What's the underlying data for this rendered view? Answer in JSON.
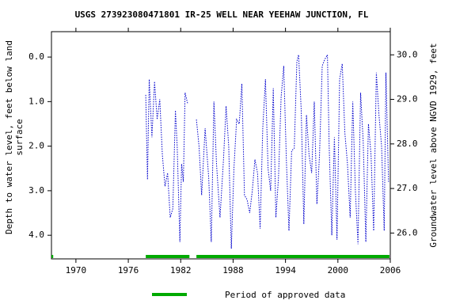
{
  "chart_data": {
    "type": "line",
    "title": "USGS 273923080471801 IR-25 WELL NEAR YEEHAW JUNCTION, FL",
    "ylabel": [
      "Depth to water level, feet below land",
      "surface"
    ],
    "y2label": "Groundwater level above NGVD 1929, feet",
    "xlim": [
      1967.2,
      2006
    ],
    "xticks": [
      1970,
      1976,
      1982,
      1988,
      1994,
      2000,
      2006
    ],
    "ylim": [
      -0.57,
      4.53
    ],
    "yticks": [
      {
        "value": 0,
        "label": "0.0"
      },
      {
        "value": 1,
        "label": "1.0"
      },
      {
        "value": 2,
        "label": "2.0"
      },
      {
        "value": 3,
        "label": "3.0"
      },
      {
        "value": 4,
        "label": "4.0"
      }
    ],
    "y2lim": [
      30.52,
      25.42
    ],
    "y2ticks": [
      {
        "value": 30,
        "label": "30.0"
      },
      {
        "value": 29,
        "label": "29.0"
      },
      {
        "value": 28,
        "label": "28.0"
      },
      {
        "value": 27,
        "label": "27.0"
      },
      {
        "value": 26,
        "label": "26.0"
      }
    ],
    "series": [
      {
        "color": "#0000cc",
        "x": [
          1967.3,
          null,
          1978.0,
          1978.2,
          1978.4,
          1978.7,
          1979.0,
          1979.3,
          1979.6,
          1979.9,
          1980.2,
          1980.5,
          1980.8,
          1981.1,
          1981.4,
          1981.6,
          1981.9,
          1982.1,
          1982.3,
          1982.5,
          1982.8,
          null,
          1983.8,
          1984.1,
          1984.4,
          1984.8,
          1985.2,
          1985.5,
          1985.8,
          1986.1,
          1986.5,
          1986.9,
          1987.2,
          1987.5,
          1987.8,
          1988.1,
          1988.4,
          1988.7,
          1989.0,
          1989.3,
          1989.6,
          1989.9,
          1990.2,
          1990.5,
          1990.8,
          1991.1,
          1991.4,
          1991.7,
          1992.0,
          1992.3,
          1992.6,
          1992.9,
          1993.2,
          1993.5,
          1993.8,
          1994.1,
          1994.4,
          1994.7,
          1995.0,
          1995.3,
          1995.5,
          1995.8,
          1996.1,
          1996.4,
          1996.7,
          1997.0,
          1997.3,
          1997.6,
          1997.9,
          1998.2,
          1998.5,
          1998.8,
          1999.0,
          1999.3,
          1999.6,
          1999.9,
          2000.2,
          2000.5,
          2000.8,
          2001.1,
          2001.4,
          2001.7,
          2002.0,
          2002.3,
          2002.6,
          2002.9,
          2003.2,
          2003.5,
          2003.8,
          2004.1,
          2004.4,
          2004.7,
          2005.0,
          2005.3,
          2005.5,
          2005.8
        ],
        "values": [
          2.65,
          null,
          0.85,
          2.75,
          0.5,
          1.8,
          0.55,
          1.4,
          0.95,
          2.2,
          2.9,
          2.6,
          3.6,
          3.4,
          1.2,
          2.0,
          4.15,
          2.4,
          2.8,
          0.8,
          1.05,
          null,
          1.4,
          2.0,
          3.1,
          1.6,
          2.7,
          4.15,
          1.0,
          2.4,
          3.6,
          2.3,
          1.1,
          2.0,
          4.3,
          2.5,
          1.4,
          1.5,
          0.6,
          3.1,
          3.2,
          3.5,
          3.0,
          2.3,
          2.6,
          3.85,
          1.6,
          0.5,
          2.5,
          3.0,
          0.7,
          3.6,
          2.7,
          0.9,
          0.2,
          2.3,
          3.9,
          2.1,
          2.05,
          0.1,
          -0.05,
          1.2,
          3.75,
          1.3,
          2.2,
          2.6,
          1.0,
          3.3,
          2.2,
          0.2,
          0.05,
          -0.05,
          2.0,
          4.0,
          1.8,
          4.1,
          0.5,
          0.15,
          1.7,
          2.4,
          3.6,
          1.0,
          3.0,
          4.2,
          0.8,
          1.9,
          4.15,
          1.5,
          2.2,
          3.9,
          0.35,
          1.3,
          2.0,
          3.9,
          0.35,
          2.8
        ]
      }
    ],
    "approved_periods": {
      "name": "Period of approved data",
      "color": "#00aa00",
      "ranges": [
        [
          1967.2,
          1967.4
        ],
        [
          1978.0,
          1983.0
        ],
        [
          1983.8,
          2005.9
        ]
      ]
    }
  }
}
